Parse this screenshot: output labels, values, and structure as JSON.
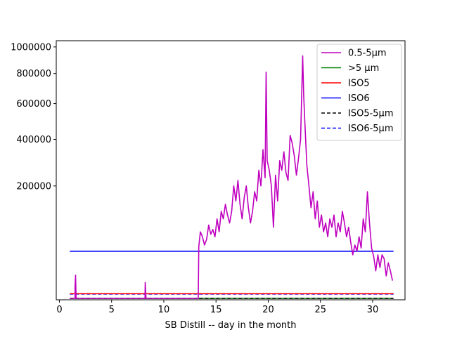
{
  "chart_data": {
    "type": "line",
    "title": "",
    "xlabel": "SB Distill -- day in the month",
    "ylabel": "",
    "xlim": [
      -0.3,
      33.1
    ],
    "ylim": [
      0,
      1050000
    ],
    "y_scale": "sqrt",
    "x_ticks": [
      0,
      5,
      10,
      15,
      20,
      25,
      30
    ],
    "x_tick_labels": [
      "0",
      "5",
      "10",
      "15",
      "20",
      "25",
      "30"
    ],
    "y_ticks": [
      200000,
      400000,
      600000,
      800000,
      1000000
    ],
    "y_tick_labels": [
      "200000",
      "400000",
      "600000",
      "800000",
      "1000000"
    ],
    "grid": false,
    "legend_position": "top-right",
    "series": [
      {
        "name": "0.5-5µm",
        "color": "#bf00bf",
        "dash": "solid",
        "x": [
          1.0,
          1.5,
          1.5,
          1.55,
          1.6,
          2.0,
          3.0,
          4.0,
          5.0,
          6.0,
          7.0,
          8.0,
          8.2,
          8.22,
          8.25,
          8.3,
          9.0,
          10.0,
          11.0,
          12.0,
          13.0,
          13.2,
          13.3,
          13.35,
          13.5,
          13.7,
          13.9,
          14.1,
          14.3,
          14.5,
          14.7,
          14.9,
          15.1,
          15.3,
          15.5,
          15.7,
          15.9,
          16.1,
          16.3,
          16.5,
          16.7,
          16.9,
          17.1,
          17.3,
          17.5,
          17.7,
          17.9,
          18.1,
          18.3,
          18.5,
          18.7,
          18.9,
          19.1,
          19.3,
          19.5,
          19.7,
          19.8,
          19.9,
          20.1,
          20.3,
          20.5,
          20.7,
          20.9,
          21.1,
          21.3,
          21.5,
          21.7,
          21.9,
          22.1,
          22.3,
          22.5,
          22.7,
          22.9,
          23.1,
          23.3,
          23.4,
          23.5,
          23.7,
          23.9,
          24.1,
          24.3,
          24.5,
          24.7,
          24.9,
          25.1,
          25.3,
          25.5,
          25.7,
          25.9,
          26.1,
          26.3,
          26.5,
          26.7,
          26.9,
          27.1,
          27.3,
          27.5,
          27.7,
          27.9,
          28.1,
          28.3,
          28.5,
          28.7,
          28.9,
          29.1,
          29.3,
          29.5,
          29.7,
          29.9,
          30.1,
          30.3,
          30.5,
          30.7,
          30.9,
          31.1,
          31.3,
          31.5,
          31.7,
          31.9
        ],
        "y": [
          0,
          0,
          2000,
          8500,
          0,
          0,
          0,
          0,
          0,
          0,
          0,
          0,
          0,
          4000,
          1500,
          0,
          0,
          0,
          0,
          0,
          0,
          0,
          0,
          42000,
          70000,
          60000,
          45000,
          55000,
          85000,
          65000,
          75000,
          60000,
          100000,
          70000,
          120000,
          100000,
          140000,
          110000,
          90000,
          120000,
          200000,
          150000,
          220000,
          140000,
          100000,
          160000,
          200000,
          130000,
          90000,
          120000,
          180000,
          150000,
          260000,
          200000,
          350000,
          230000,
          810000,
          300000,
          260000,
          200000,
          80000,
          240000,
          150000,
          300000,
          260000,
          340000,
          250000,
          220000,
          420000,
          380000,
          320000,
          240000,
          310000,
          400000,
          930000,
          650000,
          500000,
          280000,
          200000,
          130000,
          180000,
          100000,
          150000,
          80000,
          110000,
          70000,
          90000,
          60000,
          100000,
          80000,
          110000,
          60000,
          90000,
          70000,
          120000,
          90000,
          60000,
          80000,
          50000,
          30000,
          45000,
          35000,
          60000,
          40000,
          100000,
          70000,
          180000,
          90000,
          40000,
          28000,
          12000,
          30000,
          15000,
          30000,
          25000,
          8000,
          20000,
          12000,
          5000
        ]
      },
      {
        "name": ">5 µm",
        "color": "#008000",
        "dash": "solid",
        "x": [
          1.0,
          32.0
        ],
        "y": [
          0,
          0
        ]
      },
      {
        "name": "ISO5",
        "color": "#ff0000",
        "dash": "solid",
        "x": [
          1.0,
          32.0
        ],
        "y": [
          352,
          352
        ]
      },
      {
        "name": "ISO6",
        "color": "#0000ff",
        "dash": "solid",
        "x": [
          1.0,
          32.0
        ],
        "y": [
          35200,
          35200
        ]
      },
      {
        "name": "ISO5-5µm",
        "color": "#000000",
        "dash": "dashed",
        "x": [
          1.0,
          32.0
        ],
        "y": [
          0,
          0
        ]
      },
      {
        "name": "ISO6-5µm",
        "color": "#0000ff",
        "dash": "dashed",
        "x": [
          1.0,
          32.0
        ],
        "y": [
          293,
          293
        ]
      }
    ],
    "legend": [
      "0.5-5µm",
      ">5 µm",
      "ISO5",
      "ISO6",
      "ISO5-5µm",
      "ISO6-5µm"
    ]
  }
}
